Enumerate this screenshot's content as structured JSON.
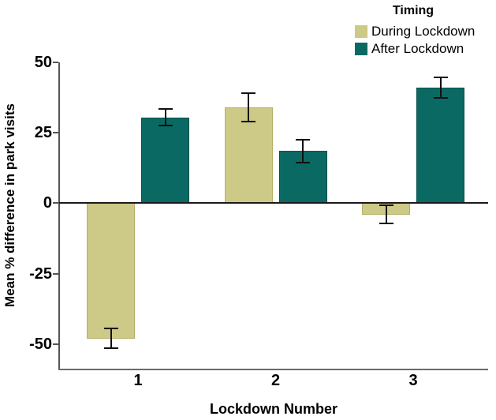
{
  "figure": {
    "legend": {
      "title": "Timing",
      "items": [
        {
          "label": "During Lockdown",
          "color": "#cdc986"
        },
        {
          "label": "After Lockdown",
          "color": "#0a6a63"
        }
      ]
    },
    "x_axis": {
      "title": "Lockdown Number"
    },
    "y_axis": {
      "title": "Mean % difference in park visits"
    }
  },
  "chart_data": {
    "type": "bar",
    "title": "",
    "categories": [
      "1",
      "2",
      "3"
    ],
    "series": [
      {
        "name": "During Lockdown",
        "color": "#cdc986",
        "border_color": "#b3af67",
        "values": [
          -48,
          34,
          -4
        ],
        "errors": [
          3.5,
          5,
          3.3
        ]
      },
      {
        "name": "After Lockdown",
        "color": "#0a6a63",
        "border_color": "#054f49",
        "values": [
          30.5,
          18.5,
          41
        ],
        "errors": [
          3,
          4,
          3.6
        ]
      }
    ],
    "xlabel": "Lockdown Number",
    "ylabel": "Mean % difference in park visits",
    "ylim": [
      -59,
      50
    ],
    "yticks": [
      50,
      25,
      0,
      -25,
      -50
    ],
    "grid": false,
    "legend_title": "Timing",
    "legend_position": "top-right",
    "error_bars": true,
    "zero_line": true,
    "colors": {
      "during": "#cdc986",
      "after": "#0a6a63",
      "axis": "#555555",
      "zero_line": "#1a1a1a",
      "error_bar": "#111111",
      "text": "#000000",
      "background": "#ffffff"
    }
  }
}
